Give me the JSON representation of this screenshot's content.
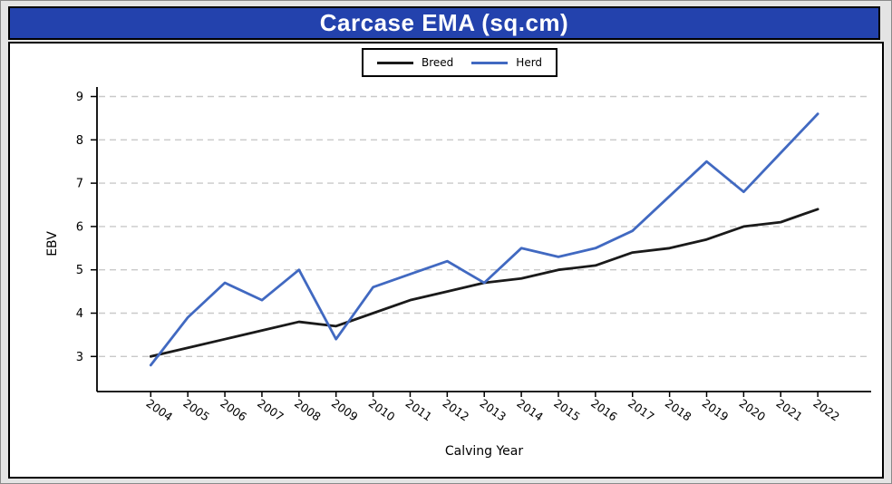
{
  "window": {
    "title": "Carcase EMA (sq.cm)"
  },
  "colors": {
    "page_bg": "#e4e4e4",
    "title_bar_bg": "#2342ad",
    "title_text": "#ffffff",
    "chart_bg": "#ffffff",
    "breed_line": "#1a1a1a",
    "herd_line": "#4169c1",
    "gridline": "#c9c9c9",
    "axis": "#000000"
  },
  "chart_data": {
    "type": "line",
    "title": "Carcase EMA (sq.cm)",
    "xlabel": "Calving Year",
    "ylabel": "EBV",
    "x": [
      2004,
      2005,
      2006,
      2007,
      2008,
      2009,
      2010,
      2011,
      2012,
      2013,
      2014,
      2015,
      2016,
      2017,
      2018,
      2019,
      2020,
      2021,
      2022
    ],
    "series": [
      {
        "name": "Breed",
        "color_key": "breed_line",
        "values": [
          3.0,
          3.2,
          3.4,
          3.6,
          3.8,
          3.7,
          4.0,
          4.3,
          4.5,
          4.7,
          4.8,
          5.0,
          5.1,
          5.4,
          5.5,
          5.7,
          6.0,
          6.1,
          6.4
        ]
      },
      {
        "name": "Herd",
        "color_key": "herd_line",
        "values": [
          2.8,
          3.9,
          4.7,
          4.3,
          5.0,
          3.4,
          4.6,
          4.9,
          5.2,
          4.7,
          5.5,
          5.3,
          5.5,
          5.9,
          6.7,
          7.5,
          6.8,
          7.7,
          8.6
        ]
      }
    ],
    "yticks": [
      3,
      4,
      5,
      6,
      7,
      8,
      9
    ],
    "ylim": [
      2.2,
      9.3
    ],
    "grid": "dashed horizontal gridlines at integer y values",
    "legend_position": "top-center"
  }
}
